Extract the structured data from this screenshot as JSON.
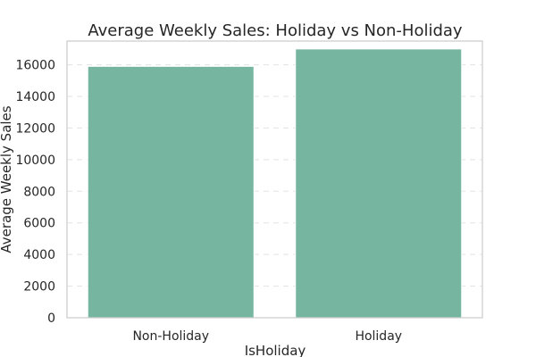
{
  "chart_data": {
    "type": "bar",
    "title": "Average Weekly Sales: Holiday vs Non-Holiday",
    "xlabel": "IsHoliday",
    "ylabel": "Average Weekly Sales",
    "categories": [
      "Non-Holiday",
      "Holiday"
    ],
    "values": [
      15900,
      17000
    ],
    "ylim": [
      0,
      17500
    ],
    "yticks": [
      0,
      2000,
      4000,
      6000,
      8000,
      10000,
      12000,
      14000,
      16000
    ],
    "grid": "y-dashed",
    "bar_color": "#76b6a1"
  }
}
